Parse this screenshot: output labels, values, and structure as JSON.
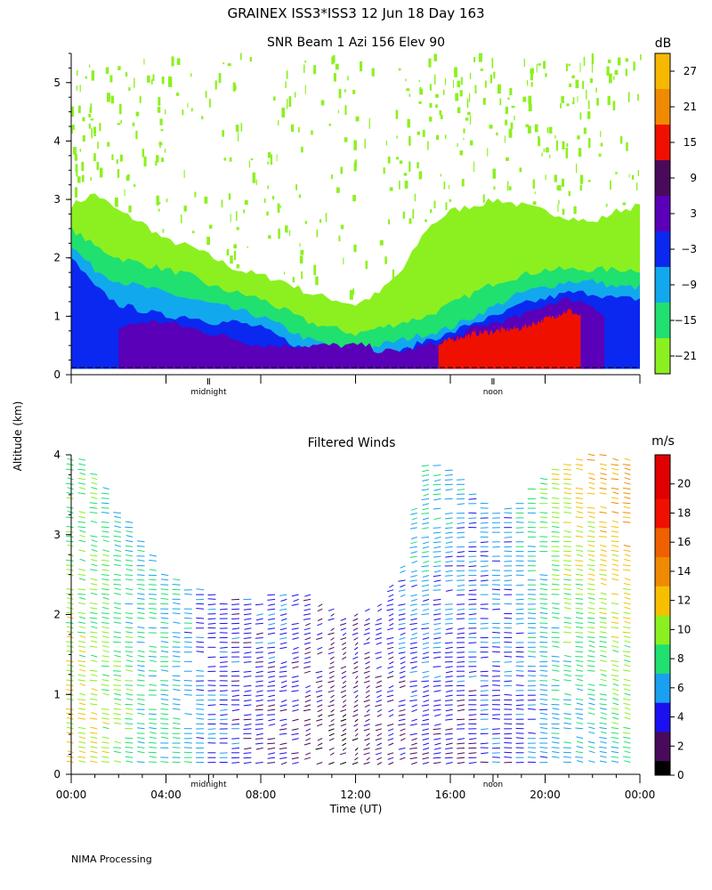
{
  "header": {
    "title": "GRAINEX ISS3*ISS3  12 Jun 18 Day 163"
  },
  "footer": {
    "text": "NIMA Processing"
  },
  "shared": {
    "ylabel": "Altitude (km)",
    "xlabel": "Time (UT)",
    "x_ticks": [
      "00:00",
      "04:00",
      "08:00",
      "12:00",
      "16:00",
      "20:00",
      "00:00"
    ],
    "markers": [
      "midnight",
      "noon"
    ]
  },
  "chart_data": [
    {
      "id": "snr",
      "type": "heatmap",
      "title": "SNR Beam 1 Azi 156 Elev 90",
      "ylim": [
        0,
        5.5
      ],
      "xlim_hours": [
        0,
        24
      ],
      "y_ticks": [
        0,
        1,
        2,
        3,
        4,
        5
      ],
      "y_tick_labels": [
        "0",
        "1",
        "2",
        "3",
        "4",
        "5"
      ],
      "colorbar": {
        "unit": "dB",
        "tick_labels": [
          "27",
          "21",
          "15",
          "9",
          "3",
          "−3",
          "−9",
          "−15",
          "−21"
        ],
        "colors": [
          "#f6b800",
          "#f08a00",
          "#f01000",
          "#4a0a5c",
          "#5a00b8",
          "#0a28f0",
          "#12a8ee",
          "#20e070",
          "#8cf020"
        ],
        "levels": [
          -21,
          -15,
          -9,
          -3,
          3,
          9,
          15,
          21,
          27
        ]
      },
      "markers": [
        {
          "label": "midnight",
          "hour": 5.8
        },
        {
          "label": "noon",
          "hour": 17.8
        }
      ],
      "layers": [
        {
          "value": -18,
          "hours": [
            0,
            1,
            2,
            3,
            4,
            5,
            6,
            7,
            8,
            9,
            10,
            11,
            12,
            13,
            14,
            15,
            16,
            17,
            18,
            19,
            20,
            21,
            22,
            23,
            24
          ],
          "top": [
            2.9,
            3.1,
            2.8,
            2.6,
            2.3,
            2.2,
            2.0,
            1.8,
            1.7,
            1.6,
            1.4,
            1.3,
            1.2,
            1.4,
            1.8,
            2.5,
            2.8,
            2.9,
            3.0,
            2.9,
            2.8,
            2.7,
            2.6,
            2.8,
            2.9
          ]
        },
        {
          "value": -12,
          "hours": [
            0,
            1,
            2,
            3,
            4,
            5,
            6,
            7,
            8,
            9,
            10,
            11,
            12,
            13,
            14,
            15,
            16,
            17,
            18,
            19,
            20,
            21,
            22,
            23,
            24
          ],
          "top": [
            2.5,
            2.2,
            2.0,
            1.9,
            1.8,
            1.7,
            1.5,
            1.4,
            1.3,
            1.1,
            0.9,
            0.8,
            0.7,
            0.8,
            0.9,
            1.0,
            1.2,
            1.4,
            1.6,
            1.7,
            1.8,
            1.8,
            1.8,
            1.8,
            1.8
          ]
        },
        {
          "value": -6,
          "hours": [
            0,
            1,
            2,
            3,
            4,
            5,
            6,
            7,
            8,
            9,
            10,
            11,
            12,
            13,
            14,
            15,
            16,
            17,
            18,
            19,
            20,
            21,
            22,
            23,
            24
          ],
          "top": [
            2.2,
            1.8,
            1.6,
            1.5,
            1.4,
            1.3,
            1.2,
            1.1,
            1.0,
            0.8,
            0.6,
            0.5,
            0.4,
            0.5,
            0.6,
            0.7,
            0.8,
            1.0,
            1.2,
            1.4,
            1.5,
            1.6,
            1.6,
            1.5,
            1.5
          ]
        },
        {
          "value": 0,
          "hours": [
            0,
            1,
            2,
            3,
            4,
            5,
            6,
            7,
            8,
            9,
            10,
            11,
            12,
            13,
            14,
            15,
            16,
            17,
            18,
            19,
            20,
            21,
            22,
            23,
            24
          ],
          "top": [
            2.0,
            1.5,
            1.2,
            1.1,
            1.0,
            1.0,
            0.9,
            0.9,
            0.8,
            0.6,
            0.4,
            0.3,
            0.3,
            0.3,
            0.4,
            0.6,
            0.7,
            0.9,
            1.0,
            1.2,
            1.3,
            1.4,
            1.4,
            1.3,
            1.3
          ]
        },
        {
          "value": 6,
          "hours": [
            2,
            3,
            4,
            5,
            6,
            7,
            8,
            12.5,
            13,
            14,
            15,
            16,
            17,
            18,
            19,
            20,
            21,
            22,
            22.5
          ],
          "top": [
            0.8,
            0.9,
            0.9,
            0.8,
            0.7,
            0.6,
            0.5,
            0.5,
            0.4,
            0.4,
            0.5,
            0.6,
            0.8,
            0.9,
            1.0,
            1.2,
            1.3,
            1.2,
            1.0
          ]
        },
        {
          "value": 15,
          "hours": [
            15.5,
            16,
            17,
            18,
            19,
            20,
            21,
            21.5
          ],
          "top": [
            0.5,
            0.6,
            0.7,
            0.75,
            0.8,
            0.95,
            1.1,
            1.0
          ]
        }
      ]
    },
    {
      "id": "winds",
      "type": "scatter",
      "title": "Filtered Winds",
      "ylim": [
        0,
        4
      ],
      "xlim_hours": [
        0,
        24
      ],
      "y_ticks": [
        0,
        1,
        2,
        3,
        4
      ],
      "y_tick_labels": [
        "0",
        "1",
        "2",
        "3",
        "4"
      ],
      "colorbar": {
        "unit": "m/s",
        "tick_labels": [
          "20",
          "18",
          "16",
          "14",
          "12",
          "10",
          "8",
          "6",
          "4",
          "2",
          "0"
        ],
        "tick_values": [
          20,
          18,
          16,
          14,
          12,
          10,
          8,
          6,
          4,
          2,
          0
        ],
        "range": [
          0,
          22
        ],
        "colors": [
          "#000000",
          "#4a0a5c",
          "#1a10f0",
          "#1aa0f0",
          "#20e070",
          "#8cf020",
          "#f6c000",
          "#f08a00",
          "#f06000",
          "#f01000",
          "#e00000"
        ],
        "bounds": [
          0,
          1,
          3,
          5,
          7,
          9,
          11,
          13,
          15,
          17,
          19,
          22
        ]
      },
      "markers": [
        {
          "label": "midnight",
          "hour": 5.8
        },
        {
          "label": "noon",
          "hour": 17.8
        }
      ],
      "profiles": {
        "hours": [
          0,
          1,
          2,
          3,
          4,
          5,
          6,
          7,
          8,
          9,
          10,
          11,
          12,
          13,
          14,
          15,
          16,
          17,
          18,
          19,
          20,
          21,
          22,
          23,
          24
        ],
        "top_km": [
          4.0,
          3.9,
          3.4,
          3.0,
          2.6,
          2.4,
          2.3,
          2.2,
          2.2,
          2.3,
          2.3,
          2.1,
          2.0,
          2.2,
          2.6,
          3.9,
          3.9,
          3.6,
          3.3,
          3.4,
          3.7,
          3.9,
          4.0,
          4.0,
          3.9
        ],
        "speed_low": [
          12,
          11,
          10,
          8,
          8,
          7,
          5,
          4,
          3,
          3,
          2,
          1,
          1,
          2,
          2,
          3,
          3,
          3,
          4,
          4,
          5,
          6,
          6,
          7,
          8
        ],
        "speed_high": [
          8,
          8,
          7,
          6,
          6,
          5,
          4,
          4,
          5,
          7,
          5,
          4,
          4,
          5,
          7,
          8,
          7,
          6,
          6,
          7,
          9,
          12,
          13,
          14,
          14
        ],
        "direction_deg": [
          300,
          300,
          295,
          290,
          285,
          280,
          270,
          260,
          250,
          240,
          230,
          220,
          210,
          220,
          230,
          240,
          250,
          260,
          270,
          270,
          280,
          290,
          300,
          300,
          300
        ]
      }
    }
  ]
}
